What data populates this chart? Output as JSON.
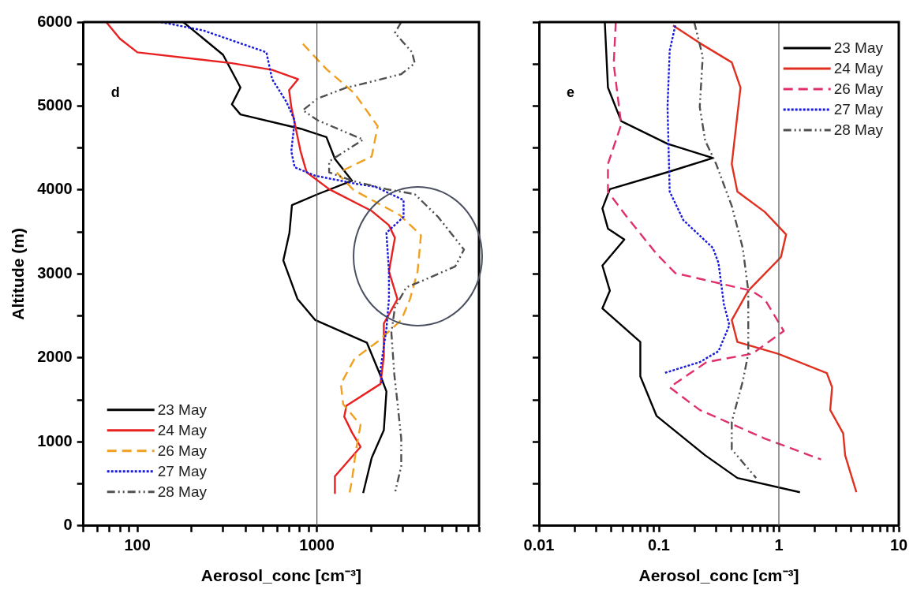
{
  "chart_data": [
    {
      "type": "line",
      "xlabel": "Aerosol_conc [cm⁻³]",
      "ylabel": "Altitude (m)",
      "log": "x",
      "xlim": [
        50,
        8000
      ],
      "xticks": [
        {
          "value": 50,
          "label": null
        },
        {
          "value": 60,
          "label": null
        },
        {
          "value": 70,
          "label": null
        },
        {
          "value": 80,
          "label": null
        },
        {
          "value": 90,
          "label": null
        },
        100,
        {
          "value": 200,
          "label": null
        },
        {
          "value": 300,
          "label": null
        },
        {
          "value": 400,
          "label": null
        },
        {
          "value": 500,
          "label": null
        },
        {
          "value": 600,
          "label": null
        },
        {
          "value": 700,
          "label": null
        },
        {
          "value": 800,
          "label": null
        },
        {
          "value": 900,
          "label": null
        },
        1000,
        {
          "value": 2000,
          "label": null
        },
        {
          "value": 3000,
          "label": null
        },
        {
          "value": 4000,
          "label": null
        },
        {
          "value": 5000,
          "label": null
        },
        {
          "value": 6000,
          "label": null
        },
        {
          "value": 7000,
          "label": null
        },
        {
          "value": 8000,
          "label": null
        }
      ],
      "ylim": [
        0,
        6000
      ],
      "yticks": [
        0,
        {
          "value": 500,
          "label": null
        },
        1000,
        {
          "value": 1500,
          "label": null
        },
        2000,
        {
          "value": 2500,
          "label": null
        },
        3000,
        {
          "value": 3500,
          "label": null
        },
        4000,
        {
          "value": 4500,
          "label": null
        },
        5000,
        {
          "value": 5500,
          "label": null
        },
        6000
      ],
      "legend": "bottom left",
      "marker": "none",
      "annotations": [
        "d"
      ],
      "ref_lines": [
        {
          "axis": "x",
          "value": 1000,
          "color": "#555555"
        }
      ],
      "series": [
        {
          "name": "23 May",
          "color": "#000000",
          "line_style": "solid",
          "x": [
            180,
            300,
            375,
            336,
            375,
            811,
            1130,
            1260,
            1570,
            1010,
            726,
            703,
            650,
            780,
            980,
            1900,
            2260,
            2440,
            2360,
            2020,
            1810
          ],
          "values": [
            6000,
            5610,
            5220,
            5020,
            4900,
            4730,
            4630,
            4370,
            4110,
            3950,
            3820,
            3490,
            3160,
            2700,
            2450,
            2180,
            1790,
            1600,
            1140,
            810,
            390
          ]
        },
        {
          "name": "24 May",
          "color": "#e8201f",
          "line_style": "solid",
          "x": [
            67,
            80,
            100,
            336,
            563,
            785,
            700,
            720,
            811,
            877,
            1170,
            2020,
            2520,
            2720,
            2520,
            2810,
            2360,
            2360,
            2260,
            1460,
            1420,
            1570,
            1750,
            1260,
            1260
          ],
          "values": [
            6000,
            5800,
            5640,
            5510,
            5430,
            5320,
            5190,
            4990,
            4460,
            4210,
            4010,
            3750,
            3580,
            3430,
            3030,
            2700,
            2410,
            2020,
            1690,
            1430,
            1300,
            1110,
            940,
            590,
            390
          ]
        },
        {
          "name": "26 May",
          "color": "#f0a020",
          "line_style": "dashed",
          "x": [
            835,
            1130,
            1620,
            2180,
            2020,
            1300,
            1600,
            2900,
            3800,
            3640,
            3300,
            2950,
            2200,
            1620,
            1360,
            1400,
            1750,
            1650,
            1570,
            1520
          ],
          "values": [
            5740,
            5440,
            5150,
            4760,
            4400,
            4200,
            4000,
            3700,
            3460,
            3030,
            2700,
            2450,
            2200,
            1990,
            1690,
            1450,
            1200,
            900,
            550,
            390
          ]
        },
        {
          "name": "27 May",
          "color": "#1a1adc",
          "line_style": "dotted",
          "x": [
            135,
            233,
            523,
            563,
            676,
            752,
            720,
            752,
            980,
            1690,
            2110,
            3040,
            3040,
            2440,
            2520,
            2520,
            2440,
            2260,
            2300
          ],
          "values": [
            6000,
            5900,
            5640,
            5320,
            5050,
            4830,
            4460,
            4270,
            4170,
            4070,
            4040,
            3880,
            3680,
            3490,
            3030,
            2700,
            2350,
            1860,
            1700
          ]
        },
        {
          "name": "28 May",
          "color": "#505050",
          "line_style": "dashdot",
          "x": [
            2950,
            2720,
            3390,
            3510,
            2950,
            1690,
            1460,
            1010,
            835,
            1010,
            1810,
            1170,
            1170,
            1570,
            2440,
            3510,
            4730,
            6600,
            5900,
            4080,
            3150,
            2720,
            2600,
            2700,
            2810,
            2950,
            2950,
            2720
          ],
          "values": [
            6000,
            5870,
            5640,
            5510,
            5380,
            5250,
            5220,
            5090,
            4950,
            4830,
            4600,
            4340,
            4210,
            4110,
            4010,
            3950,
            3680,
            3290,
            3090,
            2940,
            2840,
            2600,
            2300,
            1800,
            1470,
            1040,
            710,
            390
          ]
        }
      ]
    },
    {
      "type": "line",
      "xlabel": "Aerosol_conc [cm⁻³]",
      "log": "x",
      "xlim": [
        0.01,
        10
      ],
      "xticks": [
        0.01,
        {
          "value": 0.02,
          "label": null
        },
        {
          "value": 0.03,
          "label": null
        },
        {
          "value": 0.04,
          "label": null
        },
        {
          "value": 0.05,
          "label": null
        },
        {
          "value": 0.06,
          "label": null
        },
        {
          "value": 0.07,
          "label": null
        },
        {
          "value": 0.08,
          "label": null
        },
        {
          "value": 0.09,
          "label": null
        },
        0.1,
        {
          "value": 0.2,
          "label": null
        },
        {
          "value": 0.3,
          "label": null
        },
        {
          "value": 0.4,
          "label": null
        },
        {
          "value": 0.5,
          "label": null
        },
        {
          "value": 0.6,
          "label": null
        },
        {
          "value": 0.7,
          "label": null
        },
        {
          "value": 0.8,
          "label": null
        },
        {
          "value": 0.9,
          "label": null
        },
        1,
        {
          "value": 2,
          "label": null
        },
        {
          "value": 3,
          "label": null
        },
        {
          "value": 4,
          "label": null
        },
        {
          "value": 5,
          "label": null
        },
        {
          "value": 6,
          "label": null
        },
        {
          "value": 7,
          "label": null
        },
        {
          "value": 8,
          "label": null
        },
        {
          "value": 9,
          "label": null
        },
        10
      ],
      "ylim": [
        0,
        6000
      ],
      "yticks": [
        0,
        500,
        1000,
        1500,
        2000,
        2500,
        3000,
        3500,
        4000,
        4500,
        5000,
        5500,
        6000
      ],
      "tick_labels": "x",
      "legend": "top right",
      "marker": "none",
      "annotations": [
        "e"
      ],
      "ref_lines": [
        {
          "axis": "x",
          "value": 1,
          "color": "#555555"
        }
      ],
      "series": [
        {
          "name": "23 May",
          "color": "#000000",
          "line_style": "solid",
          "x": [
            0.0354,
            0.0376,
            0.0485,
            0.118,
            0.282,
            0.123,
            0.039,
            0.0338,
            0.0376,
            0.0515,
            0.0338,
            0.039,
            0.0338,
            0.07,
            0.07,
            0.0955,
            0.243,
            0.451,
            1.5
          ],
          "values": [
            6000,
            5220,
            4820,
            4550,
            4380,
            4220,
            4010,
            3780,
            3540,
            3410,
            3100,
            2800,
            2590,
            2190,
            1780,
            1310,
            840,
            570,
            400
          ]
        },
        {
          "name": "24 May",
          "color": "#e03020",
          "line_style": "solid",
          "x": [
            0.131,
            0.219,
            0.405,
            0.479,
            0.405,
            0.451,
            0.762,
            1.15,
            1.04,
            0.556,
            0.405,
            0.451,
            0.984,
            2.51,
            2.78,
            2.68,
            3.44,
            3.57,
            4.43
          ],
          "values": [
            5960,
            5750,
            5520,
            5220,
            4310,
            3980,
            3740,
            3470,
            3200,
            2800,
            2450,
            2190,
            2050,
            1820,
            1650,
            1380,
            1100,
            840,
            400
          ]
        },
        {
          "name": "26 May",
          "color": "#e0306a",
          "line_style": "dashed",
          "x": [
            0.0437,
            0.042,
            0.0485,
            0.0376,
            0.0376,
            0.054,
            0.0955,
            0.137,
            0.59,
            0.762,
            1.1,
            0.6,
            0.25,
            0.123,
            0.219,
            0.762,
            2.25
          ],
          "values": [
            6000,
            5500,
            4780,
            4310,
            3980,
            3680,
            3240,
            3010,
            2800,
            2700,
            2320,
            2050,
            1950,
            1650,
            1380,
            1040,
            790
          ]
        },
        {
          "name": "27 May",
          "color": "#1a1adc",
          "line_style": "dotted",
          "x": [
            0.137,
            0.123,
            0.118,
            0.123,
            0.16,
            0.282,
            0.314,
            0.348,
            0.387,
            0.314,
            0.219,
            0.111
          ],
          "values": [
            5960,
            5660,
            4990,
            3980,
            3640,
            3310,
            3130,
            2640,
            2390,
            2080,
            1950,
            1820
          ]
        },
        {
          "name": "28 May",
          "color": "#505050",
          "line_style": "dashdot",
          "x": [
            0.197,
            0.232,
            0.219,
            0.243,
            0.3,
            0.405,
            0.5,
            0.556,
            0.556,
            0.556,
            0.5,
            0.405,
            0.405,
            0.646
          ],
          "values": [
            6000,
            5590,
            4990,
            4590,
            4310,
            3810,
            3310,
            2800,
            2560,
            2050,
            1720,
            1240,
            910,
            570
          ]
        }
      ]
    }
  ]
}
